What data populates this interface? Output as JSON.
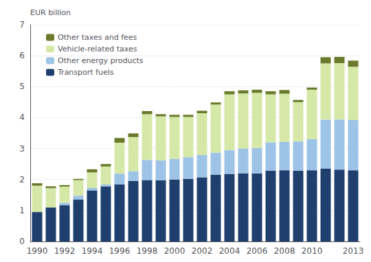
{
  "chart_data": {
    "type": "bar",
    "stacked": true,
    "ylabel": "EUR billion",
    "categories": [
      "1990",
      null,
      "1992",
      null,
      "1994",
      null,
      "1996",
      null,
      "1998",
      null,
      "2000",
      null,
      "2002",
      null,
      "2004",
      null,
      "2006",
      null,
      "2008",
      null,
      "2010",
      null,
      null,
      "2013"
    ],
    "series": [
      {
        "name": "Transport fuels",
        "color": "#1F3F6E",
        "values": [
          0.95,
          1.1,
          1.17,
          1.35,
          1.65,
          1.78,
          1.84,
          1.95,
          1.98,
          1.97,
          2.0,
          2.02,
          2.07,
          2.15,
          2.18,
          2.2,
          2.2,
          2.28,
          2.3,
          2.28,
          2.3,
          2.35,
          2.32,
          2.3
        ]
      },
      {
        "name": "Other energy products",
        "color": "#9DC3E6",
        "values": [
          0.0,
          0.0,
          0.08,
          0.13,
          0.08,
          0.06,
          0.35,
          0.32,
          0.65,
          0.65,
          0.67,
          0.7,
          0.72,
          0.72,
          0.77,
          0.8,
          0.82,
          0.92,
          0.92,
          0.95,
          1.0,
          1.58,
          1.62,
          1.62
        ]
      },
      {
        "name": "Vehicle-related taxes",
        "color": "#D6E8A8",
        "values": [
          0.85,
          0.62,
          0.52,
          0.5,
          0.5,
          0.58,
          1.0,
          1.1,
          1.48,
          1.42,
          1.35,
          1.3,
          1.35,
          1.55,
          1.8,
          1.78,
          1.78,
          1.55,
          1.55,
          1.27,
          1.6,
          1.82,
          1.82,
          1.72
        ]
      },
      {
        "name": "Other taxes and fees",
        "color": "#6B7A2A",
        "values": [
          0.08,
          0.06,
          0.05,
          0.04,
          0.1,
          0.08,
          0.15,
          0.12,
          0.1,
          0.07,
          0.07,
          0.07,
          0.08,
          0.07,
          0.1,
          0.1,
          0.1,
          0.1,
          0.12,
          0.07,
          0.07,
          0.2,
          0.2,
          0.2
        ]
      }
    ],
    "ylim": [
      0,
      7
    ],
    "yticks": [
      0,
      1,
      2,
      3,
      4,
      5,
      6,
      7
    ],
    "grid": true,
    "legend": "upper left"
  }
}
